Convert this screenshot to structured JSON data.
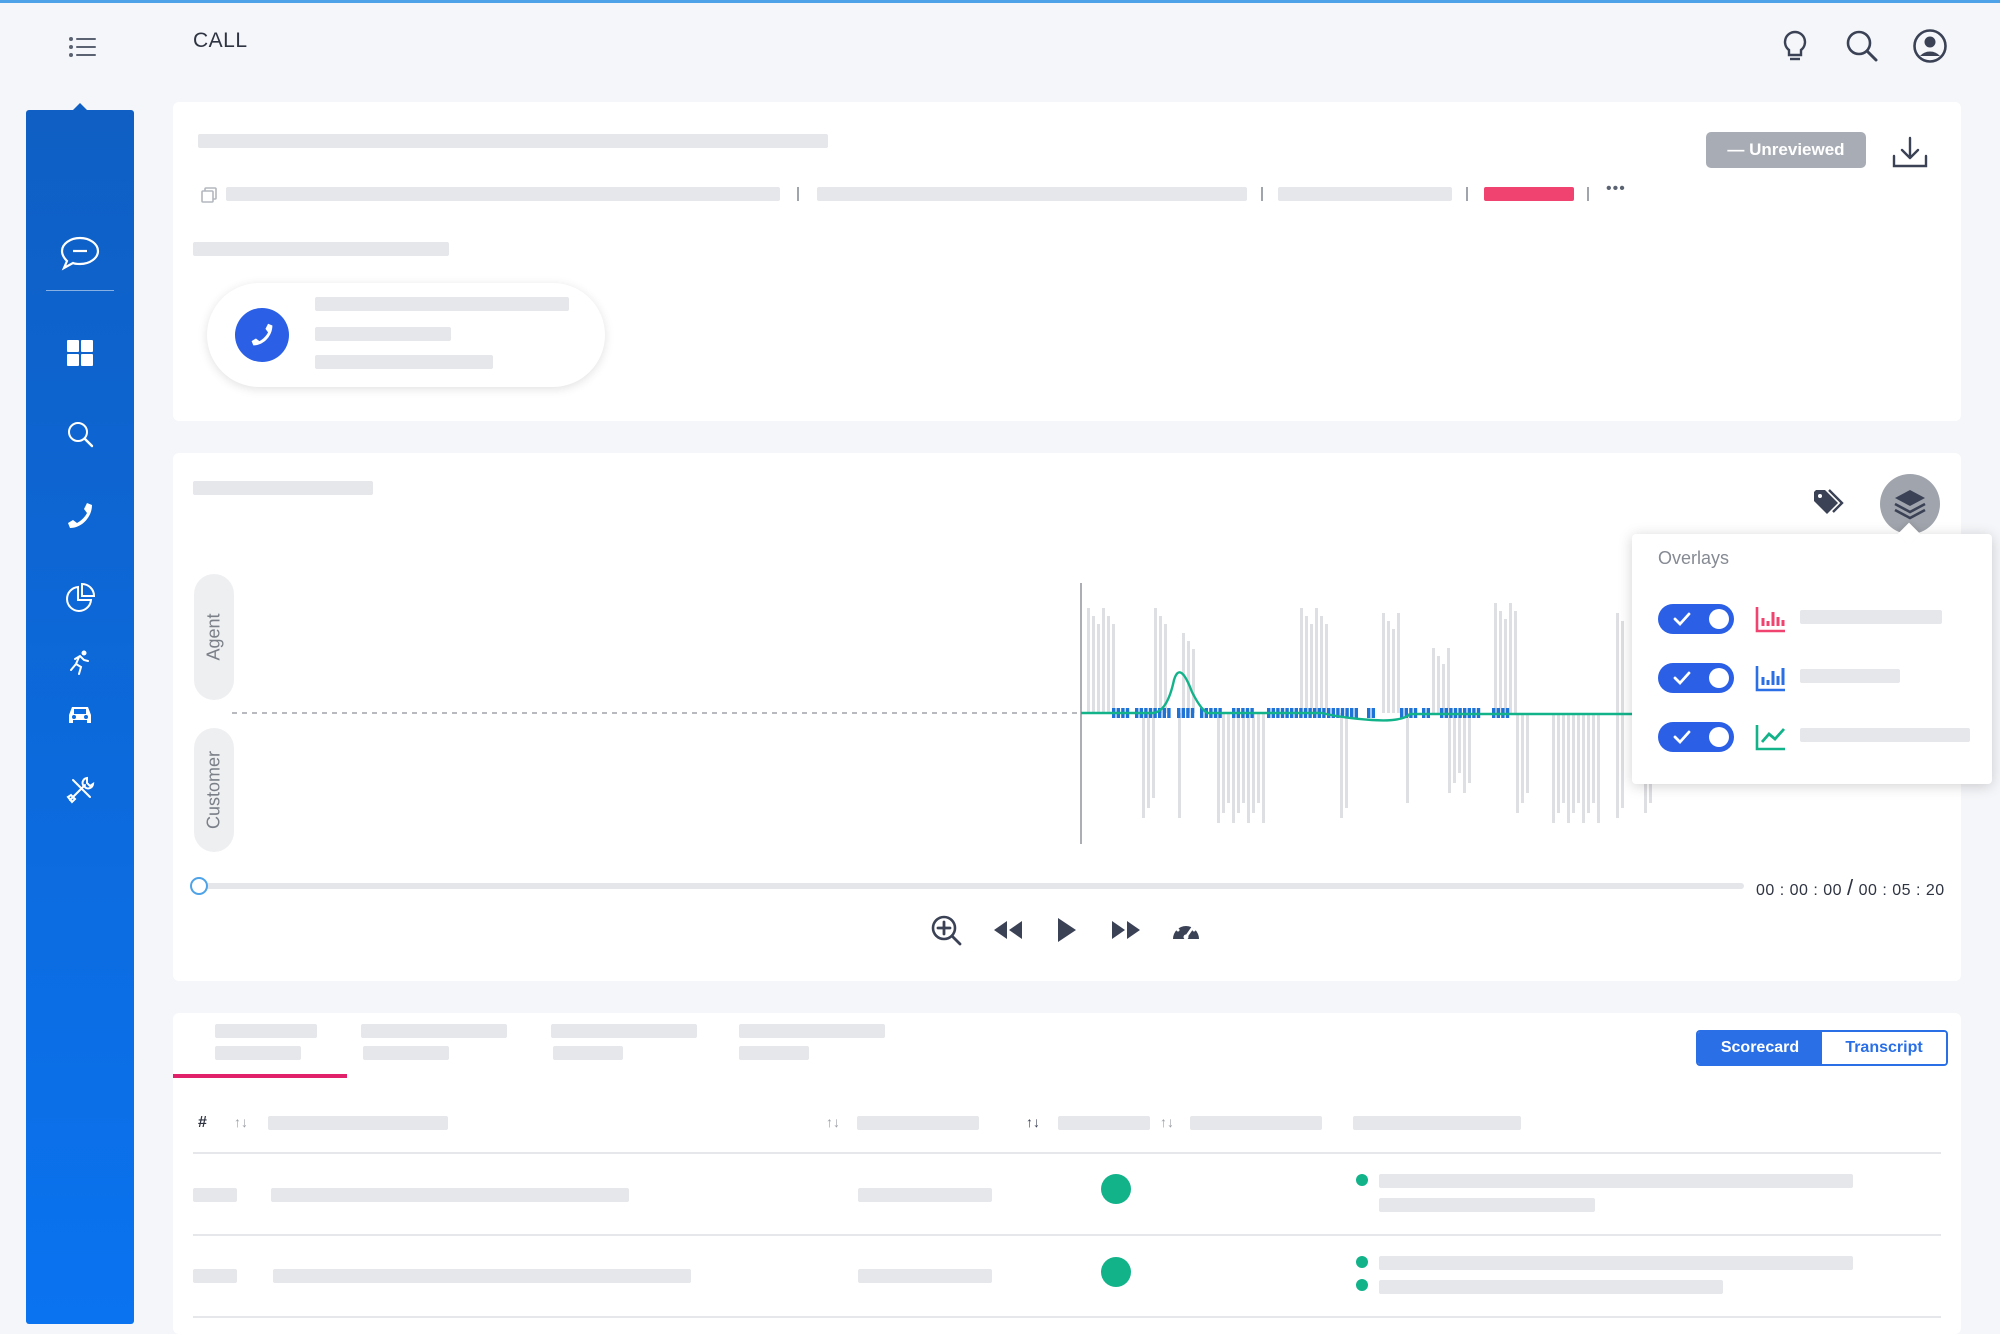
{
  "header": {
    "title": "CALL",
    "icons": [
      "lightbulb-icon",
      "search-icon",
      "user-account-icon"
    ]
  },
  "sidebar": {
    "items": [
      "chat-icon",
      "dashboard-icon",
      "search-icon",
      "phone-icon",
      "pie-chart-icon",
      "runner-icon",
      "car-icon",
      "tools-icon"
    ]
  },
  "call_info": {
    "status_label": "— Unreviewed",
    "more_label": "•••",
    "accent_color": "#f0436f"
  },
  "player": {
    "agent_label": "Agent",
    "customer_label": "Customer",
    "current_time": "00 : 00 : 00",
    "time_separator": "/",
    "total_time": "00 : 05 : 20",
    "progress": 0
  },
  "overlays": {
    "title": "Overlays",
    "items": [
      {
        "enabled": true,
        "icon": "bar-chart-icon",
        "color": "#f0436f"
      },
      {
        "enabled": true,
        "icon": "bar-chart-icon",
        "color": "#2a6fe6"
      },
      {
        "enabled": true,
        "icon": "line-chart-icon",
        "color": "#13b38a"
      }
    ]
  },
  "details": {
    "view_options": [
      "Scorecard",
      "Transcript"
    ],
    "active_view": "Scorecard",
    "hash_header": "#",
    "status_color": "#13b38a"
  }
}
